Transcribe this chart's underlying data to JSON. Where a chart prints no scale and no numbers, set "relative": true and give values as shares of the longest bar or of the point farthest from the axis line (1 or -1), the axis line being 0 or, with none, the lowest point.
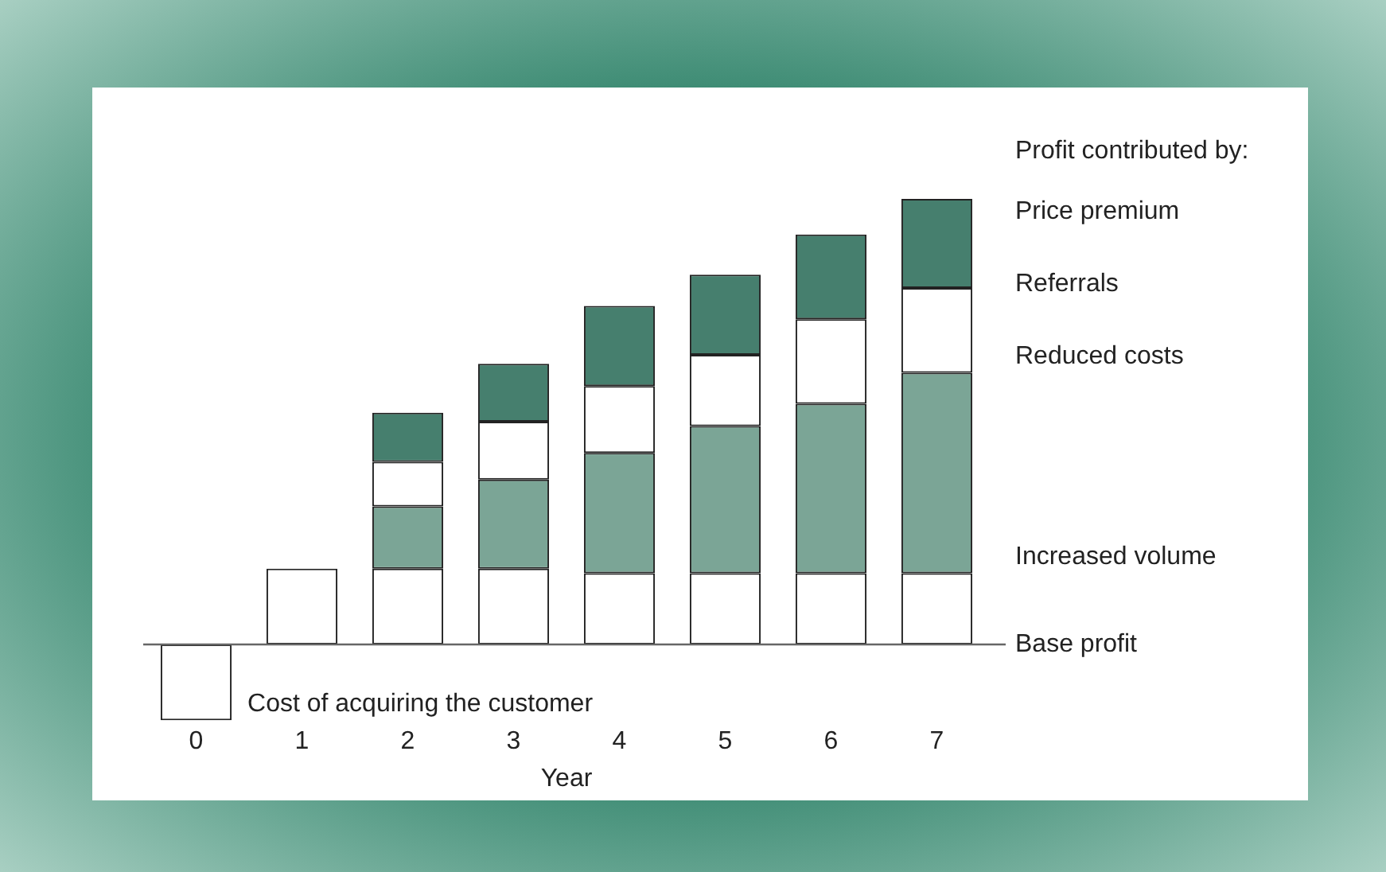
{
  "chart_data": {
    "type": "bar",
    "stacked": true,
    "relative": true,
    "xlabel": "Year",
    "legend_title": "Profit contributed by:",
    "legend": false,
    "grid": false,
    "categories": [
      "0",
      "1",
      "2",
      "3",
      "4",
      "5",
      "6",
      "7"
    ],
    "series": [
      {
        "name": "Cost of acquiring the customer",
        "color": "#ffffff",
        "values": [
          -0.17,
          null,
          null,
          null,
          null,
          null,
          null,
          null
        ]
      },
      {
        "name": "Base profit",
        "color": "#ffffff",
        "values": [
          null,
          0.17,
          0.17,
          0.17,
          0.16,
          0.16,
          0.16,
          0.16
        ]
      },
      {
        "name": "Increased volume",
        "color": "#7ba596",
        "values": [
          null,
          null,
          0.14,
          0.2,
          0.27,
          0.33,
          0.38,
          0.45
        ]
      },
      {
        "name": "Reduced costs",
        "color": "#ffffff",
        "values": [
          null,
          null,
          0.1,
          0.13,
          0.15,
          0.16,
          0.19,
          0.19
        ]
      },
      {
        "name": "Price premium",
        "color": "#467f6e",
        "values": [
          null,
          null,
          0.11,
          0.13,
          0.18,
          0.18,
          0.19,
          0.2
        ]
      }
    ],
    "annotations": [
      "Referrals"
    ]
  }
}
